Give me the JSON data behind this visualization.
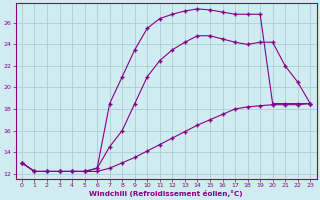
{
  "xlabel": "Windchill (Refroidissement éolien,°C)",
  "bg_color": "#d0ecf0",
  "grid_color": "#aacdd6",
  "line_color": "#880088",
  "xlim": [
    -0.5,
    23.5
  ],
  "ylim": [
    11.5,
    27.8
  ],
  "xticks": [
    0,
    1,
    2,
    3,
    4,
    5,
    6,
    7,
    8,
    9,
    10,
    11,
    12,
    13,
    14,
    15,
    16,
    17,
    18,
    19,
    20,
    21,
    22,
    23
  ],
  "yticks": [
    12,
    14,
    16,
    18,
    20,
    22,
    24,
    26
  ],
  "line1_x": [
    0,
    1,
    2,
    3,
    4,
    5,
    6,
    7,
    8,
    9,
    10,
    11,
    12,
    13,
    14,
    15,
    16,
    17,
    18,
    19,
    20,
    21,
    22,
    23
  ],
  "line1_y": [
    13.0,
    12.2,
    12.2,
    12.2,
    12.2,
    12.2,
    12.2,
    12.5,
    13.0,
    13.5,
    14.1,
    14.7,
    15.3,
    15.9,
    16.5,
    17.0,
    17.5,
    18.0,
    18.2,
    18.3,
    18.4,
    18.4,
    18.4,
    18.5
  ],
  "line2_x": [
    0,
    1,
    2,
    3,
    4,
    5,
    6,
    7,
    8,
    9,
    10,
    11,
    12,
    13,
    14,
    15,
    16,
    17,
    18,
    19,
    20,
    21,
    22,
    23
  ],
  "line2_y": [
    13.0,
    12.2,
    12.2,
    12.2,
    12.2,
    12.2,
    12.5,
    14.5,
    16.0,
    18.5,
    21.0,
    22.5,
    23.5,
    24.2,
    24.8,
    24.8,
    24.5,
    24.2,
    24.0,
    24.2,
    24.2,
    22.0,
    20.5,
    18.5
  ],
  "line3_x": [
    0,
    1,
    2,
    3,
    4,
    5,
    6,
    7,
    8,
    9,
    10,
    11,
    12,
    13,
    14,
    15,
    16,
    17,
    18,
    19,
    20,
    21,
    22,
    23
  ],
  "line3_y": [
    13.0,
    12.2,
    12.2,
    12.2,
    12.2,
    12.2,
    12.5,
    18.5,
    21.0,
    23.5,
    25.5,
    26.4,
    26.8,
    27.1,
    27.3,
    27.2,
    27.0,
    26.8,
    26.8,
    26.8,
    18.5,
    18.5,
    18.5,
    18.5
  ]
}
